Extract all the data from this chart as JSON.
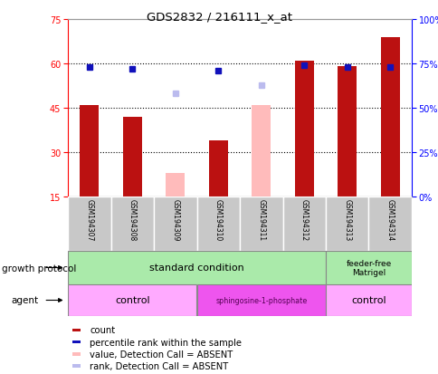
{
  "title": "GDS2832 / 216111_x_at",
  "samples": [
    "GSM194307",
    "GSM194308",
    "GSM194309",
    "GSM194310",
    "GSM194311",
    "GSM194312",
    "GSM194313",
    "GSM194314"
  ],
  "bar_values": [
    46,
    42,
    null,
    34,
    null,
    61,
    59,
    69
  ],
  "bar_absent_values": [
    null,
    null,
    23,
    null,
    46,
    null,
    null,
    null
  ],
  "rank_values": [
    73,
    72,
    null,
    71,
    null,
    74,
    73,
    73
  ],
  "rank_absent_values": [
    null,
    null,
    58,
    null,
    63,
    null,
    null,
    null
  ],
  "ylim_left": [
    15,
    75
  ],
  "ylim_right": [
    0,
    100
  ],
  "yticks_left": [
    15,
    30,
    45,
    60,
    75
  ],
  "yticks_right": [
    0,
    25,
    50,
    75,
    100
  ],
  "ytick_labels_right": [
    "0%",
    "25%",
    "50%",
    "75%",
    "100%"
  ],
  "bar_color": "#BB1111",
  "bar_absent_color": "#FFBBBB",
  "rank_color": "#1111BB",
  "rank_absent_color": "#BBBBEE",
  "gp_color": "#AAEAAA",
  "agent_light_color": "#FFAAFF",
  "agent_dark_color": "#EE55EE",
  "sample_box_color": "#C8C8C8",
  "legend_items": [
    {
      "label": "count",
      "color": "#BB1111"
    },
    {
      "label": "percentile rank within the sample",
      "color": "#1111BB"
    },
    {
      "label": "value, Detection Call = ABSENT",
      "color": "#FFBBBB"
    },
    {
      "label": "rank, Detection Call = ABSENT",
      "color": "#BBBBEE"
    }
  ],
  "growth_protocol_label": "growth protocol",
  "agent_label": "agent"
}
